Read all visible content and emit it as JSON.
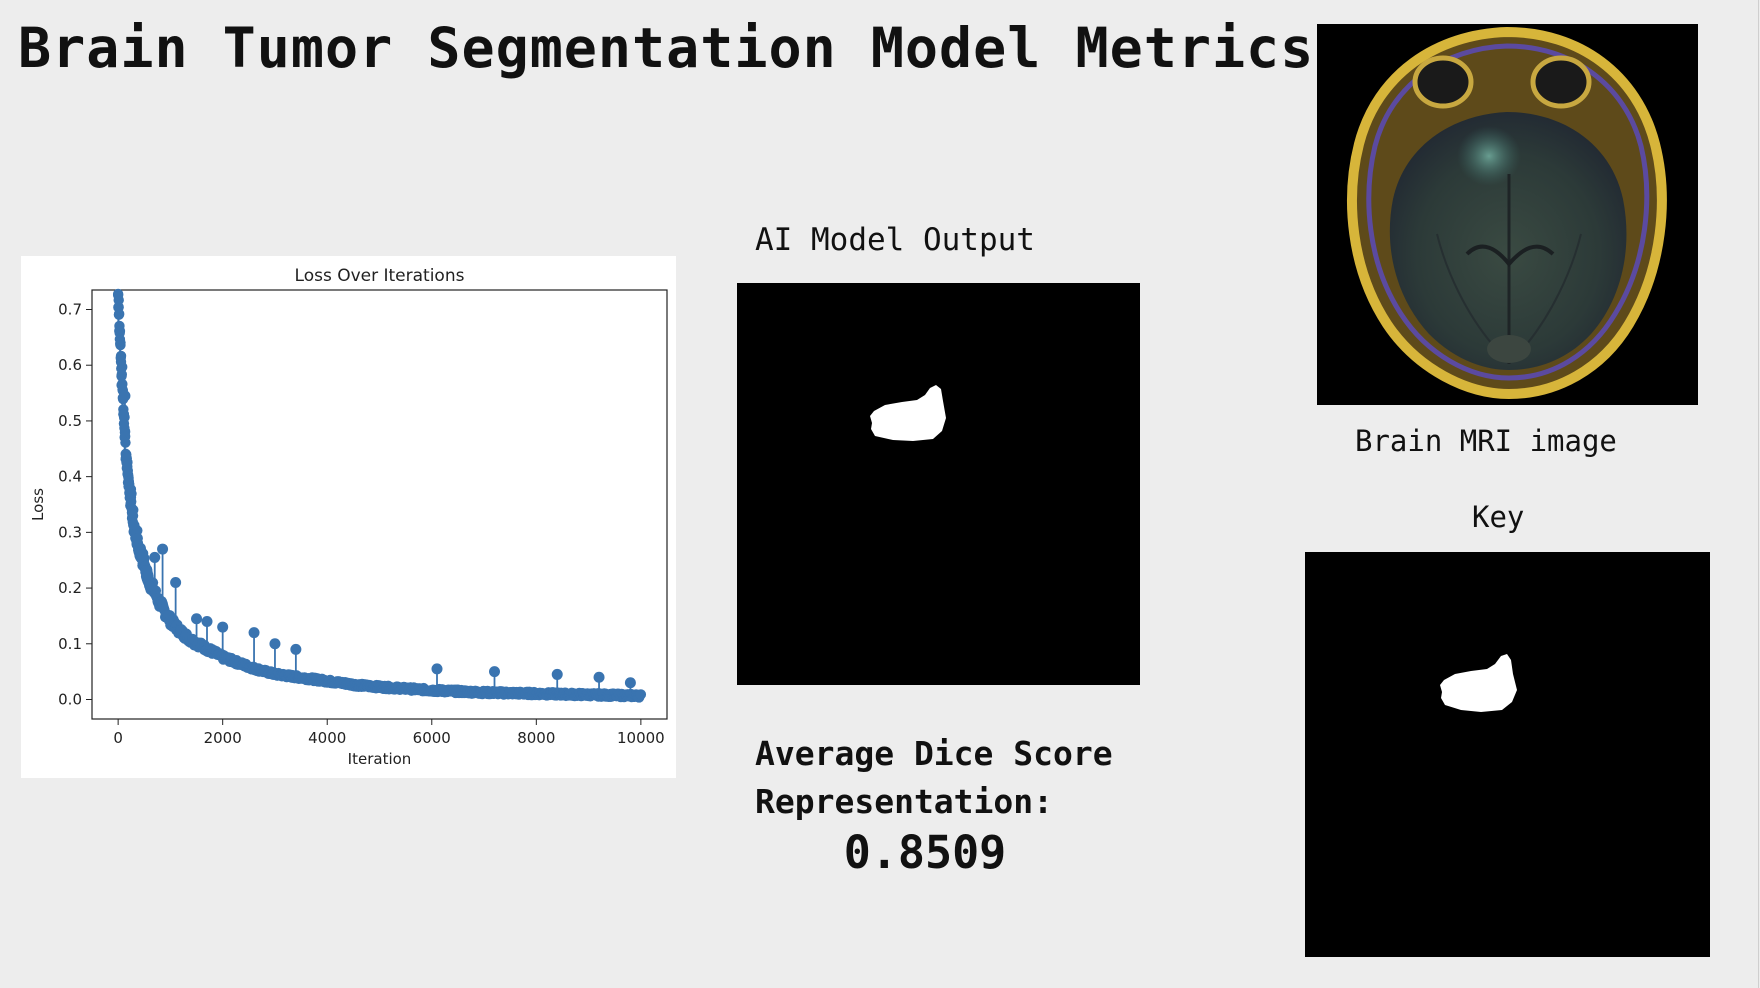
{
  "slide": {
    "title": "Brain Tumor Segmentation Model Metrics"
  },
  "output_panel": {
    "label": "AI Model Output"
  },
  "dice": {
    "label_line1": "Average Dice Score",
    "label_line2": "Representation:",
    "value": "0.8509"
  },
  "mri_panel": {
    "caption": "Brain MRI image"
  },
  "key_panel": {
    "label": "Key"
  },
  "colors": {
    "background": "#ededed",
    "series": "#3a74b0",
    "mask": "#ffffff",
    "mask_background": "#000000"
  },
  "chart_data": {
    "type": "scatter",
    "title": "Loss Over Iterations",
    "xlabel": "Iteration",
    "ylabel": "Loss",
    "xlim": [
      -500,
      10500
    ],
    "ylim": [
      -0.035,
      0.735
    ],
    "xticks": [
      0,
      2000,
      4000,
      6000,
      8000,
      10000
    ],
    "yticks": [
      0.0,
      0.1,
      0.2,
      0.3,
      0.4,
      0.5,
      0.6,
      0.7
    ],
    "grid": false,
    "series": [
      {
        "marker": "circle with stem",
        "x": [
          0,
          20,
          50,
          100,
          150,
          200,
          250,
          300,
          400,
          500,
          600,
          700,
          800,
          900,
          1000,
          1200,
          1400,
          1600,
          1800,
          2000,
          2300,
          2600,
          3000,
          3400,
          3800,
          4200,
          4600,
          5000,
          5500,
          6000,
          6500,
          7000,
          7500,
          8000,
          8500,
          9000,
          9500,
          10000
        ],
        "y": [
          0.72,
          0.69,
          0.62,
          0.52,
          0.44,
          0.39,
          0.35,
          0.31,
          0.27,
          0.24,
          0.21,
          0.19,
          0.17,
          0.155,
          0.14,
          0.12,
          0.105,
          0.095,
          0.085,
          0.075,
          0.065,
          0.055,
          0.045,
          0.04,
          0.035,
          0.03,
          0.025,
          0.022,
          0.019,
          0.016,
          0.014,
          0.012,
          0.011,
          0.01,
          0.009,
          0.008,
          0.007,
          0.006
        ]
      }
    ],
    "outliers": {
      "x": [
        130,
        700,
        850,
        1100,
        1500,
        1700,
        2000,
        2600,
        3000,
        3400,
        6100,
        7200,
        8400,
        9200,
        9800
      ],
      "y": [
        0.545,
        0.255,
        0.27,
        0.21,
        0.145,
        0.14,
        0.13,
        0.12,
        0.1,
        0.09,
        0.055,
        0.05,
        0.045,
        0.04,
        0.03
      ]
    }
  }
}
